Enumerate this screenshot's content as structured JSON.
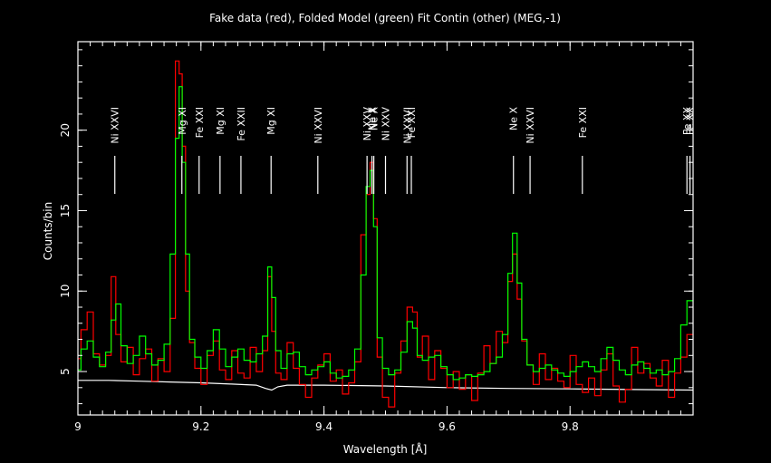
{
  "colors": {
    "background": "#000000",
    "axes": "#ffffff",
    "data": "#ff0000",
    "model": "#00ff00",
    "continuum": "#ffffff",
    "text": "#ffffff"
  },
  "chart_data": {
    "type": "line",
    "title": "Fake data (red), Folded Model (green) Fit Contin (other) (MEG,-1)",
    "xlabel": "Wavelength [Å]",
    "ylabel": "Counts/bin",
    "xlim": [
      9.0,
      10.0
    ],
    "ylim": [
      2.3,
      25.5
    ],
    "x_ticks": [
      9,
      9.2,
      9.4,
      9.6,
      9.8
    ],
    "x_tick_labels": [
      "9",
      "9.2",
      "9.4",
      "9.6",
      "9.8"
    ],
    "y_ticks": [
      5,
      10,
      15,
      20
    ],
    "y_tick_labels": [
      "5",
      "10",
      "15",
      "20"
    ],
    "line_labels": [
      {
        "wavelength": 9.06,
        "label": "Ni XXVI"
      },
      {
        "wavelength": 9.169,
        "label": "Mg XI"
      },
      {
        "wavelength": 9.197,
        "label": "Fe XXI"
      },
      {
        "wavelength": 9.231,
        "label": "Mg XI"
      },
      {
        "wavelength": 9.265,
        "label": "Fe XXII"
      },
      {
        "wavelength": 9.314,
        "label": "Mg XI"
      },
      {
        "wavelength": 9.39,
        "label": "Ni XXVI"
      },
      {
        "wavelength": 9.47,
        "label": "Ni XXV"
      },
      {
        "wavelength": 9.478,
        "label": "Ne X"
      },
      {
        "wavelength": 9.481,
        "label": "Ne X"
      },
      {
        "wavelength": 9.5,
        "label": "Ni XXV"
      },
      {
        "wavelength": 9.535,
        "label": "Ni XXVI"
      },
      {
        "wavelength": 9.542,
        "label": "Fe XXI"
      },
      {
        "wavelength": 9.708,
        "label": "Ne X"
      },
      {
        "wavelength": 9.735,
        "label": "Ni XXVI"
      },
      {
        "wavelength": 9.82,
        "label": "Fe XXI"
      },
      {
        "wavelength": 9.99,
        "label": "Fe XX"
      },
      {
        "wavelength": 9.995,
        "label": "Fe XX"
      }
    ],
    "series": [
      {
        "name": "Fake data",
        "color": "#ff0000",
        "x": [
          9.0,
          9.01,
          9.02,
          9.03,
          9.04,
          9.05,
          9.058,
          9.065,
          9.075,
          9.085,
          9.095,
          9.105,
          9.115,
          9.125,
          9.135,
          9.145,
          9.155,
          9.162,
          9.167,
          9.172,
          9.178,
          9.185,
          9.195,
          9.205,
          9.215,
          9.225,
          9.235,
          9.245,
          9.255,
          9.265,
          9.275,
          9.285,
          9.295,
          9.305,
          9.312,
          9.318,
          9.325,
          9.335,
          9.345,
          9.355,
          9.365,
          9.375,
          9.385,
          9.395,
          9.405,
          9.415,
          9.425,
          9.435,
          9.445,
          9.455,
          9.465,
          9.472,
          9.478,
          9.483,
          9.49,
          9.5,
          9.51,
          9.52,
          9.53,
          9.54,
          9.548,
          9.555,
          9.565,
          9.575,
          9.585,
          9.595,
          9.605,
          9.615,
          9.625,
          9.635,
          9.645,
          9.655,
          9.665,
          9.675,
          9.685,
          9.695,
          9.703,
          9.71,
          9.718,
          9.725,
          9.735,
          9.745,
          9.755,
          9.765,
          9.775,
          9.785,
          9.795,
          9.805,
          9.815,
          9.825,
          9.835,
          9.845,
          9.855,
          9.865,
          9.875,
          9.885,
          9.895,
          9.905,
          9.915,
          9.925,
          9.935,
          9.945,
          9.955,
          9.965,
          9.975,
          9.985,
          9.995
        ],
        "y": [
          5.8,
          7.6,
          8.7,
          6.1,
          5.4,
          6.0,
          10.9,
          7.3,
          5.6,
          6.5,
          4.8,
          5.8,
          6.4,
          4.4,
          5.8,
          5.0,
          8.3,
          24.3,
          23.5,
          19.0,
          10.0,
          6.8,
          5.2,
          4.2,
          6.0,
          6.9,
          5.1,
          4.5,
          6.3,
          4.9,
          4.6,
          6.5,
          5.0,
          6.3,
          10.9,
          7.5,
          4.9,
          4.5,
          6.8,
          5.2,
          4.2,
          3.4,
          4.6,
          5.4,
          6.1,
          4.4,
          5.1,
          3.6,
          4.3,
          5.6,
          13.5,
          16.0,
          18.0,
          14.5,
          5.9,
          3.4,
          2.8,
          4.9,
          6.9,
          9.0,
          8.7,
          5.9,
          7.2,
          4.5,
          6.3,
          5.2,
          4.0,
          5.0,
          3.9,
          4.8,
          3.2,
          4.9,
          6.6,
          5.5,
          7.5,
          6.8,
          10.6,
          12.3,
          9.5,
          6.9,
          5.4,
          4.2,
          6.1,
          4.5,
          5.2,
          4.4,
          4.0,
          6.0,
          4.2,
          3.7,
          4.6,
          3.5,
          5.1,
          6.1,
          4.1,
          3.1,
          3.9,
          6.5,
          4.9,
          5.5,
          4.6,
          4.1,
          5.7,
          3.4,
          4.9,
          5.9,
          7.3
        ]
      },
      {
        "name": "Folded Model",
        "color": "#00ff00",
        "x": [
          9.0,
          9.01,
          9.02,
          9.03,
          9.04,
          9.05,
          9.058,
          9.065,
          9.075,
          9.085,
          9.095,
          9.105,
          9.115,
          9.125,
          9.135,
          9.145,
          9.155,
          9.162,
          9.167,
          9.172,
          9.178,
          9.185,
          9.195,
          9.205,
          9.215,
          9.225,
          9.235,
          9.245,
          9.255,
          9.265,
          9.275,
          9.285,
          9.295,
          9.305,
          9.312,
          9.318,
          9.325,
          9.335,
          9.345,
          9.355,
          9.365,
          9.375,
          9.385,
          9.395,
          9.405,
          9.415,
          9.425,
          9.435,
          9.445,
          9.455,
          9.465,
          9.472,
          9.478,
          9.483,
          9.49,
          9.5,
          9.51,
          9.52,
          9.53,
          9.54,
          9.548,
          9.555,
          9.565,
          9.575,
          9.585,
          9.595,
          9.605,
          9.615,
          9.625,
          9.635,
          9.645,
          9.655,
          9.665,
          9.675,
          9.685,
          9.695,
          9.703,
          9.71,
          9.718,
          9.725,
          9.735,
          9.745,
          9.755,
          9.765,
          9.775,
          9.785,
          9.795,
          9.805,
          9.815,
          9.825,
          9.835,
          9.845,
          9.855,
          9.865,
          9.875,
          9.885,
          9.895,
          9.905,
          9.915,
          9.925,
          9.935,
          9.945,
          9.955,
          9.965,
          9.975,
          9.985,
          9.995
        ],
        "y": [
          5.1,
          6.4,
          6.9,
          5.9,
          5.3,
          6.2,
          8.2,
          9.2,
          6.6,
          5.5,
          6.0,
          7.2,
          6.1,
          5.4,
          5.7,
          6.7,
          12.3,
          19.5,
          22.7,
          18.0,
          12.3,
          7.0,
          5.9,
          5.2,
          6.3,
          7.6,
          6.4,
          5.3,
          5.9,
          6.4,
          5.7,
          5.6,
          6.1,
          7.2,
          11.5,
          9.6,
          6.3,
          5.2,
          6.1,
          6.2,
          5.3,
          4.8,
          5.1,
          5.3,
          5.6,
          4.9,
          4.6,
          4.7,
          5.1,
          6.4,
          11.0,
          16.5,
          17.5,
          14.0,
          7.1,
          5.2,
          4.8,
          5.1,
          6.2,
          8.1,
          7.7,
          6.0,
          5.7,
          5.9,
          6.0,
          5.3,
          4.8,
          4.5,
          4.6,
          4.8,
          4.7,
          4.8,
          5.0,
          5.5,
          5.9,
          7.3,
          11.1,
          13.6,
          10.5,
          7.0,
          5.4,
          5.0,
          5.2,
          5.4,
          5.1,
          4.9,
          4.7,
          5.0,
          5.3,
          5.6,
          5.3,
          5.0,
          5.8,
          6.5,
          5.7,
          5.1,
          4.8,
          5.4,
          5.6,
          5.2,
          4.9,
          5.1,
          4.8,
          5.0,
          5.8,
          7.9,
          9.4
        ]
      },
      {
        "name": "Continuum",
        "color": "#ffffff",
        "x": [
          9.0,
          9.05,
          9.1,
          9.15,
          9.2,
          9.25,
          9.29,
          9.305,
          9.315,
          9.325,
          9.34,
          9.4,
          9.5,
          9.6,
          9.7,
          9.8,
          9.9,
          10.0
        ],
        "y": [
          4.45,
          4.45,
          4.4,
          4.35,
          4.3,
          4.22,
          4.15,
          3.95,
          3.85,
          4.05,
          4.15,
          4.15,
          4.1,
          4.0,
          3.95,
          3.92,
          3.88,
          3.85
        ]
      }
    ]
  }
}
